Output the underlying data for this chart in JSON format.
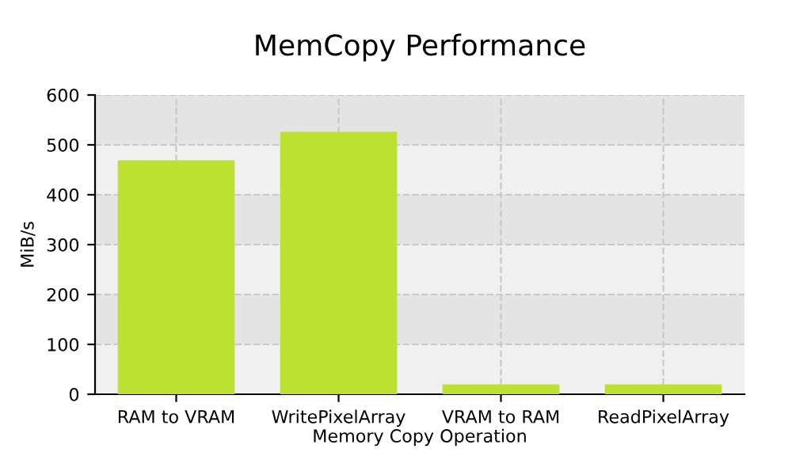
{
  "chart_data": {
    "type": "bar",
    "title": "MemCopy Performance",
    "xlabel": "Memory Copy Operation",
    "ylabel": "MiB/s",
    "categories": [
      "RAM to VRAM",
      "WritePixelArray",
      "VRAM to RAM",
      "ReadPixelArray"
    ],
    "values": [
      469,
      526,
      20,
      20
    ],
    "color": "#bde130",
    "ylim": [
      0,
      600
    ],
    "yticks": [
      0,
      100,
      200,
      300,
      400,
      500,
      600
    ],
    "grid": true
  }
}
